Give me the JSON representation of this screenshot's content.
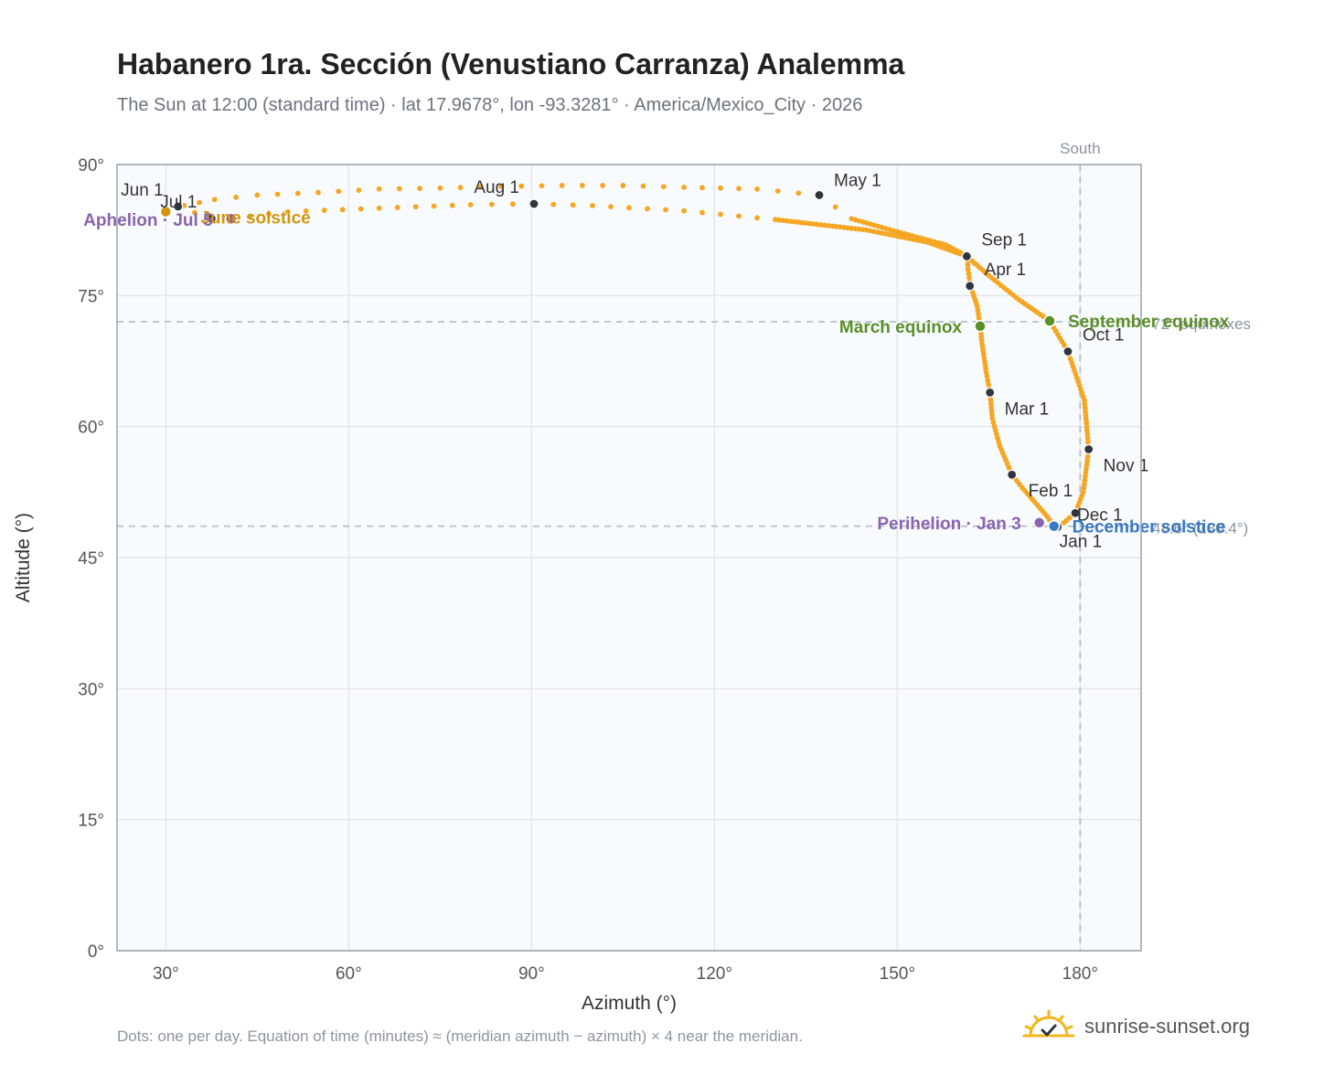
{
  "title": "Habanero 1ra. Sección (Venustiano Carranza) Analemma",
  "subtitle": "The Sun at 12:00 (standard time) · lat 17.9678°, lon -93.3281° · America/Mexico_City · 2026",
  "footnote": "Dots: one per day. Equation of time (minutes) ≈ (meridian azimuth − azimuth) × 4 near the meridian.",
  "brand": "sunrise-sunset.org",
  "colors": {
    "path": "#f5a623",
    "month_marker": "#2f3640",
    "equinox": "#5a8f29",
    "june_solstice": "#d4960f",
    "december_solstice": "#3a78c2",
    "perihelion_aphelion": "#8a63b0",
    "plot_bg": "#f8fbfd",
    "grid": "#e3e8ee",
    "reference_line": "#b8bec6"
  },
  "chart_data": {
    "type": "scatter",
    "xlabel": "Azimuth (°)",
    "ylabel": "Altitude (°)",
    "xlim": [
      22,
      190
    ],
    "ylim": [
      0,
      90
    ],
    "xticks": [
      30,
      60,
      90,
      120,
      150,
      180
    ],
    "yticks": [
      0,
      15,
      30,
      45,
      60,
      75,
      90
    ],
    "x_tick_labels": [
      "30°",
      "60°",
      "90°",
      "120°",
      "150°",
      "180°"
    ],
    "y_tick_labels": [
      "0°",
      "15°",
      "30°",
      "45°",
      "60°",
      "75°",
      "90°"
    ],
    "grid": true,
    "south_line": {
      "azimuth": 180,
      "label": "South"
    },
    "reference_lines": [
      {
        "altitude": 72.0,
        "label": "72° equinoxes"
      },
      {
        "altitude": 48.6,
        "label": "48.6° (180.4°)"
      }
    ],
    "series": [
      {
        "points": [
          [
            175.7,
            48.6
          ],
          [
            174.6,
            49.7
          ],
          [
            173.0,
            51.0
          ],
          [
            170.5,
            53.0
          ],
          [
            168.8,
            54.5
          ],
          [
            166.8,
            57.8
          ],
          [
            165.6,
            60.9
          ],
          [
            165.2,
            63.9
          ],
          [
            164.6,
            66.2
          ],
          [
            163.9,
            69.5
          ],
          [
            163.6,
            71.5
          ],
          [
            163.1,
            73.8
          ],
          [
            162.0,
            76.1
          ],
          [
            161.6,
            78.0
          ],
          [
            161.5,
            79.5
          ],
          [
            158.0,
            80.8
          ],
          [
            150.0,
            82.3
          ],
          [
            142.5,
            83.8
          ],
          [
            137.2,
            86.5
          ],
          [
            127.0,
            87.2
          ],
          [
            115.0,
            87.4
          ],
          [
            105.0,
            87.6
          ],
          [
            95.0,
            87.6
          ],
          [
            85.0,
            87.5
          ],
          [
            75.0,
            87.3
          ],
          [
            65.0,
            87.2
          ],
          [
            55.0,
            86.8
          ],
          [
            45.0,
            86.5
          ],
          [
            38.0,
            86.0
          ],
          [
            33.0,
            85.3
          ],
          [
            30.0,
            84.6
          ],
          [
            32.0,
            85.2
          ],
          [
            37.5,
            83.8
          ],
          [
            40.7,
            83.8
          ],
          [
            50.0,
            84.6
          ],
          [
            65.0,
            85.0
          ],
          [
            80.0,
            85.4
          ],
          [
            90.4,
            85.5
          ],
          [
            100.0,
            85.3
          ],
          [
            115.0,
            84.7
          ],
          [
            130.0,
            83.7
          ],
          [
            145.0,
            82.5
          ],
          [
            155.0,
            81.1
          ],
          [
            161.4,
            79.5
          ],
          [
            165.0,
            77.3
          ],
          [
            170.0,
            74.5
          ],
          [
            175.0,
            72.1
          ],
          [
            178.0,
            68.6
          ],
          [
            180.7,
            63.0
          ],
          [
            181.4,
            57.4
          ],
          [
            180.5,
            52.5
          ],
          [
            179.2,
            50.1
          ],
          [
            176.8,
            48.7
          ]
        ]
      }
    ],
    "month_markers": [
      {
        "label": "Jan 1",
        "x": 176.3,
        "y": 48.5
      },
      {
        "label": "Feb 1",
        "x": 168.8,
        "y": 54.5
      },
      {
        "label": "Mar 1",
        "x": 165.2,
        "y": 63.9
      },
      {
        "label": "Apr 1",
        "x": 161.9,
        "y": 76.1
      },
      {
        "label": "May 1",
        "x": 137.2,
        "y": 86.5
      },
      {
        "label": "Jun 1",
        "x": 32.0,
        "y": 85.2
      },
      {
        "label": "Jul 1",
        "x": 37.5,
        "y": 83.8
      },
      {
        "label": "Aug 1",
        "x": 90.4,
        "y": 85.5
      },
      {
        "label": "Sep 1",
        "x": 161.4,
        "y": 79.5
      },
      {
        "label": "Oct 1",
        "x": 178.0,
        "y": 68.6
      },
      {
        "label": "Nov 1",
        "x": 181.4,
        "y": 57.4
      },
      {
        "label": "Dec 1",
        "x": 179.2,
        "y": 50.1
      }
    ],
    "events": [
      {
        "label": "March equinox",
        "x": 163.6,
        "y": 71.5,
        "kind": "equinox"
      },
      {
        "label": "September equinox",
        "x": 175.0,
        "y": 72.1,
        "kind": "equinox"
      },
      {
        "label": "June solstice",
        "x": 30.0,
        "y": 84.6,
        "kind": "june_solstice"
      },
      {
        "label": "December solstice",
        "x": 175.7,
        "y": 48.6,
        "kind": "december_solstice"
      },
      {
        "label": "Perihelion · Jan 3",
        "x": 173.3,
        "y": 49.0,
        "kind": "perihelion_aphelion"
      },
      {
        "label": "Aphelion · Jul 5",
        "x": 40.7,
        "y": 83.8,
        "kind": "perihelion_aphelion"
      }
    ]
  }
}
